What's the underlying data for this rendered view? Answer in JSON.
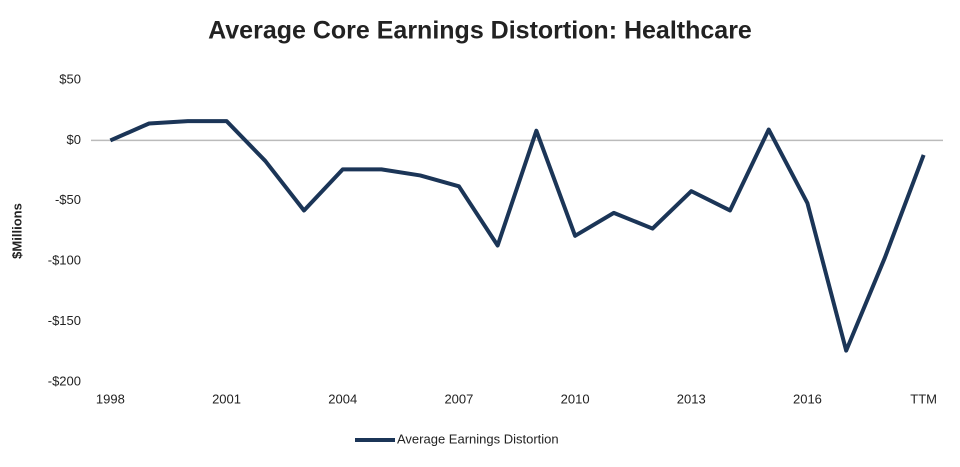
{
  "chart_data": {
    "type": "line",
    "title": "Average Core Earnings Distortion: Healthcare",
    "y_label": "$Millions",
    "categories": [
      "1998",
      null,
      null,
      "2001",
      null,
      null,
      "2004",
      null,
      null,
      "2007",
      null,
      null,
      "2010",
      null,
      null,
      "2013",
      null,
      null,
      "2016",
      null,
      null,
      "TTM"
    ],
    "series": [
      {
        "name": "Average Earnings Distortion",
        "color": "#1b3557",
        "values": [
          0,
          14,
          16,
          16,
          -17,
          -58,
          -24,
          -24,
          -29,
          -38,
          -87,
          8,
          -79,
          -60,
          -73,
          -42,
          -58,
          9,
          -52,
          -174,
          -97,
          -12
        ]
      }
    ],
    "ylim": [
      -200,
      50
    ],
    "yticks": [
      {
        "value": -200,
        "label": "-$200"
      },
      {
        "value": -150,
        "label": "-$150"
      },
      {
        "value": -100,
        "label": "-$100"
      },
      {
        "value": -50,
        "label": "-$50"
      },
      {
        "value": 0,
        "label": "$0"
      },
      {
        "value": 50,
        "label": "$50"
      }
    ],
    "grid": false,
    "legend": "bottom"
  }
}
